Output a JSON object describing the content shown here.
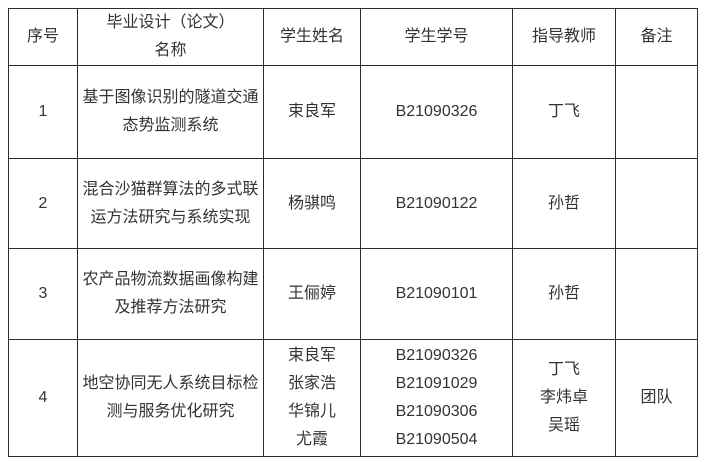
{
  "table": {
    "headers": {
      "no": "序号",
      "title": "毕业设计（论文）\n名称",
      "student_name": "学生姓名",
      "student_id": "学生学号",
      "teacher": "指导教师",
      "remark": "备注"
    },
    "rows": [
      {
        "no": "1",
        "title": "基于图像识别的隧道交通态势监测系统",
        "students": "束良军",
        "ids": "B21090326",
        "teachers": "丁飞",
        "remark": ""
      },
      {
        "no": "2",
        "title": "混合沙猫群算法的多式联运方法研究与系统实现",
        "students": "杨骐鸣",
        "ids": "B21090122",
        "teachers": "孙哲",
        "remark": ""
      },
      {
        "no": "3",
        "title": "农产品物流数据画像构建及推荐方法研究",
        "students": "王俪婷",
        "ids": "B21090101",
        "teachers": "孙哲",
        "remark": ""
      },
      {
        "no": "4",
        "title": "地空协同无人系统目标检测与服务优化研究",
        "students": "束良军\n张家浩\n华锦儿\n尤霞",
        "ids": "B21090326\nB21091029\nB21090306\nB21090504",
        "teachers": "丁飞\n李炜卓\n吴瑶",
        "remark": "团队"
      }
    ],
    "colors": {
      "border": "#2b2b2b",
      "text": "#333333",
      "background": "#ffffff"
    }
  }
}
